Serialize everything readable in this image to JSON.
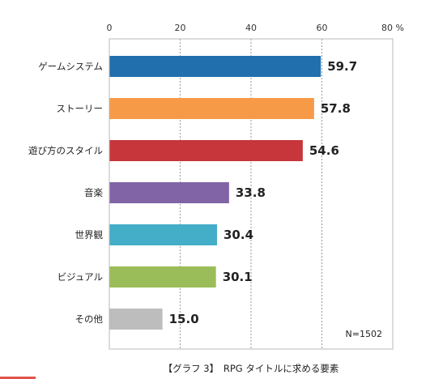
{
  "chart_data": {
    "type": "bar",
    "orientation": "horizontal",
    "categories": [
      "ゲームシステム",
      "ストーリー",
      "遊び方のスタイル",
      "音楽",
      "世界観",
      "ビジュアル",
      "その他"
    ],
    "values": [
      59.7,
      57.8,
      54.6,
      33.8,
      30.4,
      30.1,
      15.0
    ],
    "value_labels": [
      "59.7",
      "57.8",
      "54.6",
      "33.8",
      "30.4",
      "30.1",
      "15.0"
    ],
    "colors": [
      "#2170ad",
      "#f79a47",
      "#c6363a",
      "#8164a6",
      "#44adc8",
      "#9bbd59",
      "#bdbdbd"
    ],
    "xlim": [
      0,
      80
    ],
    "ticks": [
      0,
      20,
      40,
      60,
      80
    ],
    "tick_labels": [
      "0",
      "20",
      "40",
      "60",
      "80 %"
    ],
    "grid": true,
    "note": "N=1502",
    "caption": "【グラフ 3】　RPG タイトルに求める要素"
  }
}
